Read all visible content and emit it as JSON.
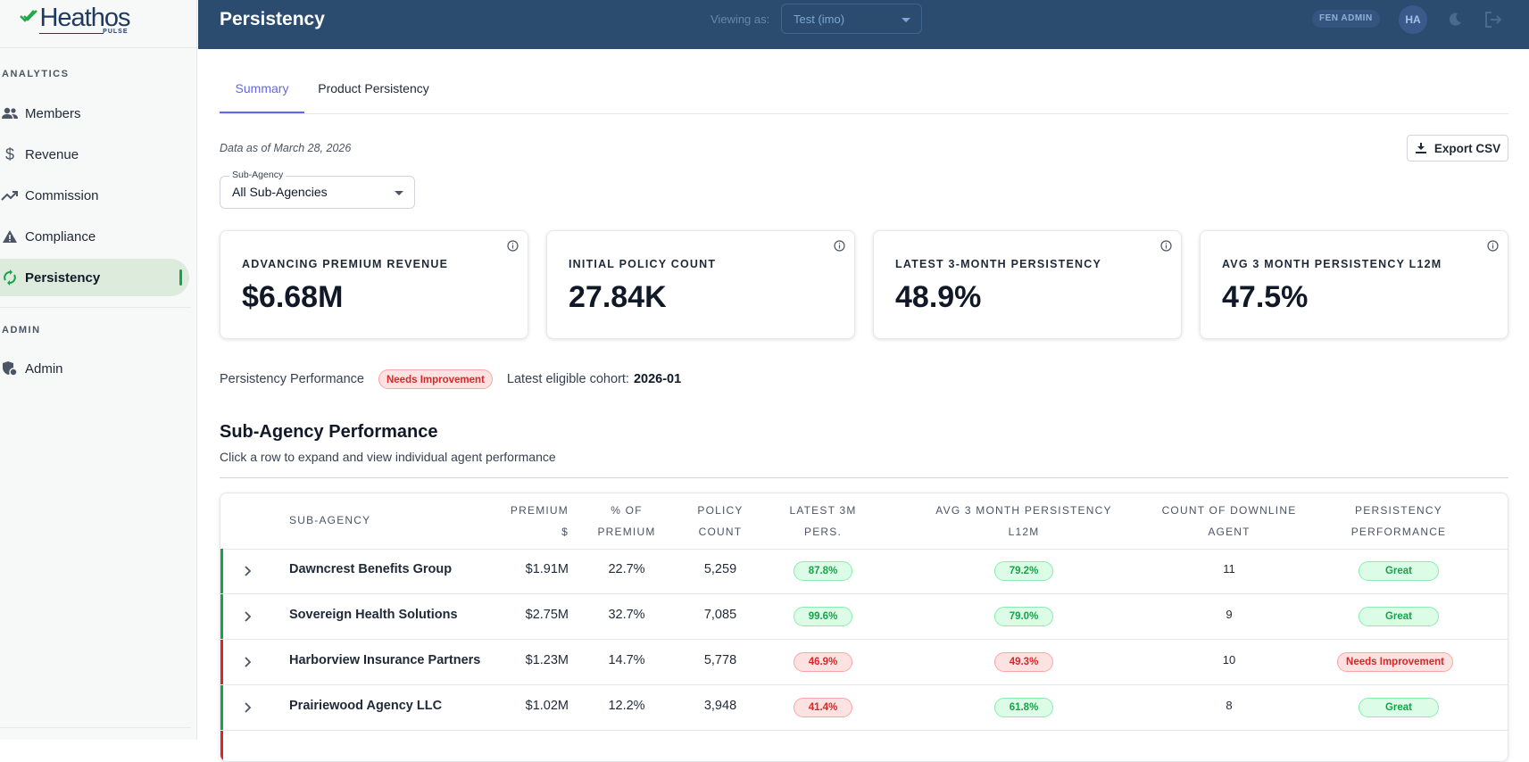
{
  "brand": {
    "name": "Heathos",
    "sub": "PULSE"
  },
  "sidebar": {
    "analytics_title": "ANALYTICS",
    "admin_title": "ADMIN",
    "items": [
      {
        "label": "Members",
        "icon": "people-icon"
      },
      {
        "label": "Revenue",
        "icon": "dollar-icon"
      },
      {
        "label": "Commission",
        "icon": "trending-up-icon"
      },
      {
        "label": "Compliance",
        "icon": "warning-icon"
      },
      {
        "label": "Persistency",
        "icon": "refresh-icon",
        "active": true
      }
    ],
    "admin_items": [
      {
        "label": "Admin",
        "icon": "admin-shield-icon"
      }
    ]
  },
  "header": {
    "title": "Persistency",
    "viewing_label": "Viewing as:",
    "viewing_value": "Test (imo)",
    "role": "FEN ADMIN",
    "avatar": "HA"
  },
  "tabs": [
    {
      "label": "Summary",
      "active": true
    },
    {
      "label": "Product Persistency",
      "active": false
    }
  ],
  "data_as_of": "Data as of March 28, 2026",
  "export_label": "Export CSV",
  "filter": {
    "label": "Sub-Agency",
    "value": "All Sub-Agencies"
  },
  "cards": [
    {
      "label": "ADVANCING PREMIUM REVENUE",
      "value": "$6.68M"
    },
    {
      "label": "INITIAL POLICY COUNT",
      "value": "27.84K"
    },
    {
      "label": "LATEST 3-MONTH PERSISTENCY",
      "value": "48.9%"
    },
    {
      "label": "AVG 3 MONTH PERSISTENCY L12M",
      "value": "47.5%"
    }
  ],
  "performance": {
    "label": "Persistency Performance",
    "status": "Needs Improvement",
    "cohort_label": "Latest eligible cohort:",
    "cohort_value": "2026-01"
  },
  "section": {
    "title": "Sub-Agency Performance",
    "subtitle": "Click a row to expand and view individual agent performance"
  },
  "table": {
    "headers": {
      "subagency": "SUB-AGENCY",
      "premium_1": "PREMIUM",
      "premium_2": "$",
      "pct_1": "% OF",
      "pct_2": "PREMIUM",
      "policy_1": "POLICY",
      "policy_2": "COUNT",
      "latest_1": "LATEST 3M",
      "latest_2": "PERS.",
      "avg_1": "AVG 3 MONTH PERSISTENCY",
      "avg_2": "L12M",
      "downline_1": "COUNT OF DOWNLINE",
      "downline_2": "AGENT",
      "perf_1": "PERSISTENCY",
      "perf_2": "PERFORMANCE"
    },
    "rows": [
      {
        "name": "Dawncrest Benefits Group",
        "premium": "$1.91M",
        "pct": "22.7%",
        "policies": "5,259",
        "latest": "87.8%",
        "latest_status": "green",
        "avg": "79.2%",
        "avg_status": "green",
        "downline": "11",
        "perf": "Great",
        "perf_status": "green",
        "edge": "#16a34a"
      },
      {
        "name": "Sovereign Health Solutions",
        "premium": "$2.75M",
        "pct": "32.7%",
        "policies": "7,085",
        "latest": "99.6%",
        "latest_status": "green",
        "avg": "79.0%",
        "avg_status": "green",
        "downline": "9",
        "perf": "Great",
        "perf_status": "green",
        "edge": "#16a34a"
      },
      {
        "name": "Harborview Insurance Partners",
        "premium": "$1.23M",
        "pct": "14.7%",
        "policies": "5,778",
        "latest": "46.9%",
        "latest_status": "red",
        "avg": "49.3%",
        "avg_status": "red",
        "downline": "10",
        "perf": "Needs Improvement",
        "perf_status": "red",
        "edge": "#dc2626"
      },
      {
        "name": "Prairiewood Agency LLC",
        "premium": "$1.02M",
        "pct": "12.2%",
        "policies": "3,948",
        "latest": "41.4%",
        "latest_status": "red",
        "avg": "61.8%",
        "avg_status": "green",
        "downline": "8",
        "perf": "Great",
        "perf_status": "green",
        "edge": "#16a34a"
      }
    ]
  },
  "colors": {
    "topbar": "#2b4c6f",
    "accent": "#6366f1",
    "success": "#16a34a",
    "danger": "#dc2626"
  }
}
